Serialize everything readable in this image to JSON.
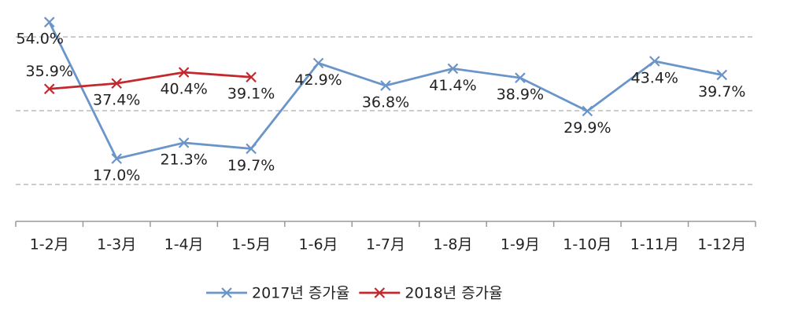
{
  "chart_data": {
    "type": "line",
    "categories": [
      "1-2月",
      "1-3月",
      "1-4月",
      "1-5月",
      "1-6月",
      "1-7月",
      "1-8月",
      "1-9月",
      "1-10月",
      "1-11月",
      "1-12月"
    ],
    "series": [
      {
        "name": "2017년 증가율",
        "color": "#6a95c9",
        "values": [
          54.0,
          17.0,
          21.3,
          19.7,
          42.9,
          36.8,
          41.4,
          38.9,
          29.9,
          43.4,
          39.7
        ],
        "value_labels": [
          "54.0%",
          "17.0%",
          "21.3%",
          "19.7%",
          "42.9%",
          "36.8%",
          "41.4%",
          "38.9%",
          "29.9%",
          "43.4%",
          "39.7%"
        ]
      },
      {
        "name": "2018년 증가율",
        "color": "#c3282d",
        "values": [
          35.9,
          37.4,
          40.4,
          39.1,
          null,
          null,
          null,
          null,
          null,
          null,
          null
        ],
        "value_labels": [
          "35.9%",
          "37.4%",
          "40.4%",
          "39.1%",
          null,
          null,
          null,
          null,
          null,
          null,
          null
        ]
      }
    ],
    "ylim": [
      0,
      55
    ],
    "yticks": [
      10,
      30,
      50
    ],
    "grid": true,
    "legend": "bottom"
  }
}
